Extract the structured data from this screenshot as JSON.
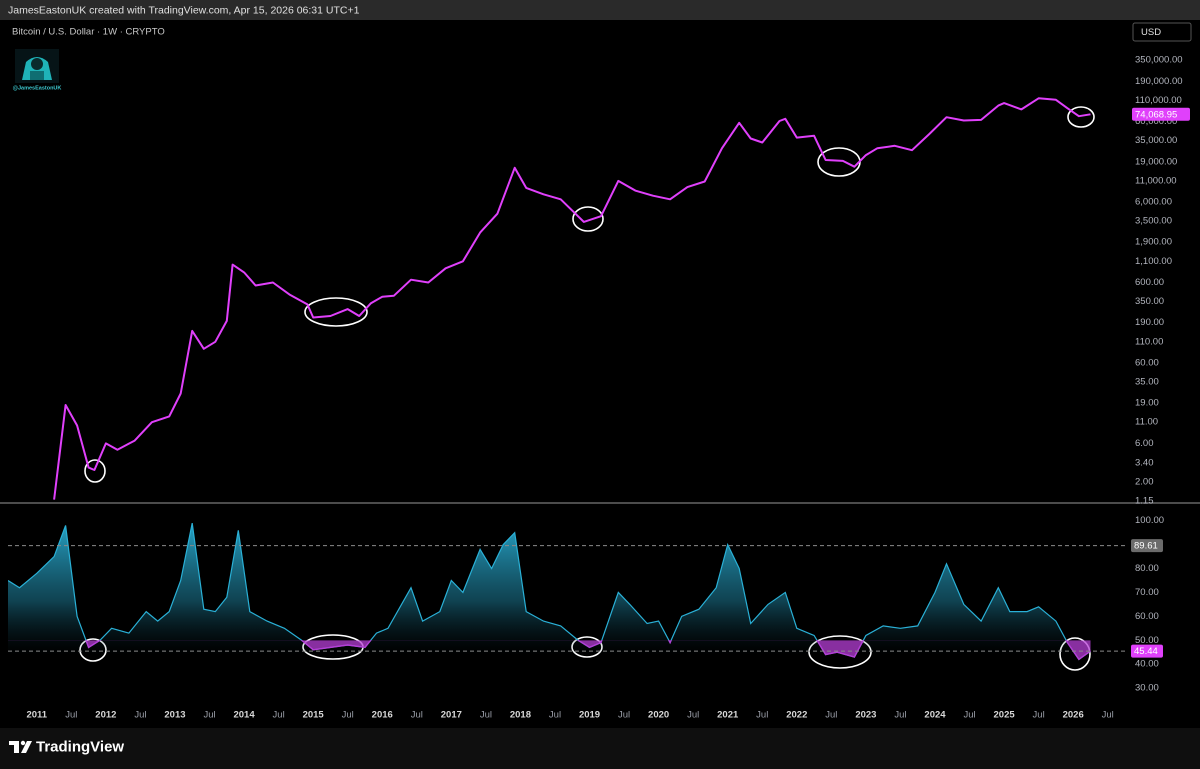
{
  "header": {
    "text": "JamesEastonUK created with TradingView.com, Apr 15, 2026 06:31 UTC+1"
  },
  "watermark_handle": "@JamesEastonUK",
  "footer": {
    "brand": "TradingView"
  },
  "chart_data": [
    {
      "type": "line",
      "title": "Bitcoin / U.S. Dollar · 1W · CRYPTO",
      "currency": "USD",
      "log_scale": true,
      "grid": false,
      "xlim": [
        "2010-08",
        "2026-10"
      ],
      "ylim": [
        1.12,
        1100000
      ],
      "yticks": [
        {
          "value": 350000,
          "label": "350,000.00"
        },
        {
          "value": 190000,
          "label": "190,000.00"
        },
        {
          "value": 110000,
          "label": "110,000.00"
        },
        {
          "value": 60000,
          "label": "60,000.00"
        },
        {
          "value": 35000,
          "label": "35,000.00"
        },
        {
          "value": 19000,
          "label": "19,000.00"
        },
        {
          "value": 11000,
          "label": "11,000.00"
        },
        {
          "value": 6000,
          "label": "6,000.00"
        },
        {
          "value": 3500,
          "label": "3,500.00"
        },
        {
          "value": 1900,
          "label": "1,900.00"
        },
        {
          "value": 1100,
          "label": "1,100.00"
        },
        {
          "value": 600,
          "label": "600.00"
        },
        {
          "value": 350,
          "label": "350.00"
        },
        {
          "value": 190,
          "label": "190.00"
        },
        {
          "value": 110,
          "label": "110.00"
        },
        {
          "value": 60,
          "label": "60.00"
        },
        {
          "value": 35,
          "label": "35.00"
        },
        {
          "value": 19,
          "label": "19.00"
        },
        {
          "value": 11,
          "label": "11.00"
        },
        {
          "value": 6,
          "label": "6.00"
        },
        {
          "value": 3.4,
          "label": "3.40"
        },
        {
          "value": 2,
          "label": "2.00"
        },
        {
          "value": 1.15,
          "label": "1.15"
        }
      ],
      "x": [
        "2011-04",
        "2011-06",
        "2011-08",
        "2011-10",
        "2011-11",
        "2012-01",
        "2012-03",
        "2012-06",
        "2012-09",
        "2012-12",
        "2013-02",
        "2013-04",
        "2013-06",
        "2013-08",
        "2013-10",
        "2013-11",
        "2014-01",
        "2014-03",
        "2014-06",
        "2014-09",
        "2014-12",
        "2015-01",
        "2015-04",
        "2015-07",
        "2015-09",
        "2015-11",
        "2016-01",
        "2016-03",
        "2016-06",
        "2016-09",
        "2016-12",
        "2017-03",
        "2017-06",
        "2017-09",
        "2017-12",
        "2018-02",
        "2018-05",
        "2018-08",
        "2018-11",
        "2018-12",
        "2019-03",
        "2019-06",
        "2019-09",
        "2019-12",
        "2020-03",
        "2020-06",
        "2020-09",
        "2020-12",
        "2021-03",
        "2021-05",
        "2021-07",
        "2021-10",
        "2021-11",
        "2022-01",
        "2022-04",
        "2022-06",
        "2022-09",
        "2022-11",
        "2023-01",
        "2023-03",
        "2023-06",
        "2023-09",
        "2023-12",
        "2024-03",
        "2024-06",
        "2024-09",
        "2024-12",
        "2025-01",
        "2025-04",
        "2025-07",
        "2025-10",
        "2025-12",
        "2026-02",
        "2026-04"
      ],
      "series": [
        {
          "name": "BTCUSD",
          "color": "#e040fb",
          "values": [
            1.2,
            18,
            10,
            3,
            2.8,
            6,
            5,
            6.5,
            11,
            13,
            25,
            150,
            90,
            110,
            200,
            1000,
            800,
            550,
            600,
            420,
            320,
            220,
            230,
            280,
            230,
            330,
            400,
            410,
            650,
            600,
            900,
            1100,
            2500,
            4300,
            16000,
            9000,
            7500,
            6500,
            4000,
            3400,
            4000,
            11000,
            8300,
            7200,
            6500,
            9200,
            10800,
            28000,
            58000,
            37000,
            33000,
            61000,
            65000,
            38000,
            40000,
            20000,
            19500,
            16500,
            23000,
            28000,
            30000,
            26500,
            42000,
            68000,
            62000,
            63000,
            95000,
            102000,
            85000,
            117000,
            112000,
            88000,
            70000,
            74068.95
          ],
          "last_value_label": "74,068.95"
        }
      ]
    },
    {
      "type": "area",
      "grid": false,
      "color": "#2ab0d6",
      "highlight_below": 50,
      "highlight_color": "#b53fd6",
      "xlim": [
        "2010-08",
        "2026-10"
      ],
      "ylim": [
        25,
        107
      ],
      "yticks": [
        {
          "value": 100,
          "label": "100.00"
        },
        {
          "value": 80,
          "label": "80.00"
        },
        {
          "value": 70,
          "label": "70.00"
        },
        {
          "value": 60,
          "label": "60.00"
        },
        {
          "value": 50,
          "label": "50.00"
        },
        {
          "value": 40,
          "label": "40.00"
        },
        {
          "value": 30,
          "label": "30.00"
        }
      ],
      "bands": [
        {
          "value": 89.61,
          "label": "89.61",
          "color": "#6b6b6b"
        },
        {
          "value": 45.44,
          "label": "45.44",
          "color": "#e040fb"
        }
      ],
      "xticks": [
        {
          "value": "2011-01",
          "label": "2011"
        },
        {
          "value": "2011-07",
          "label": "Jul"
        },
        {
          "value": "2012-01",
          "label": "2012"
        },
        {
          "value": "2012-07",
          "label": "Jul"
        },
        {
          "value": "2013-01",
          "label": "2013"
        },
        {
          "value": "2013-07",
          "label": "Jul"
        },
        {
          "value": "2014-01",
          "label": "2014"
        },
        {
          "value": "2014-07",
          "label": "Jul"
        },
        {
          "value": "2015-01",
          "label": "2015"
        },
        {
          "value": "2015-07",
          "label": "Jul"
        },
        {
          "value": "2016-01",
          "label": "2016"
        },
        {
          "value": "2016-07",
          "label": "Jul"
        },
        {
          "value": "2017-01",
          "label": "2017"
        },
        {
          "value": "2017-07",
          "label": "Jul"
        },
        {
          "value": "2018-01",
          "label": "2018"
        },
        {
          "value": "2018-07",
          "label": "Jul"
        },
        {
          "value": "2019-01",
          "label": "2019"
        },
        {
          "value": "2019-07",
          "label": "Jul"
        },
        {
          "value": "2020-01",
          "label": "2020"
        },
        {
          "value": "2020-07",
          "label": "Jul"
        },
        {
          "value": "2021-01",
          "label": "2021"
        },
        {
          "value": "2021-07",
          "label": "Jul"
        },
        {
          "value": "2022-01",
          "label": "2022"
        },
        {
          "value": "2022-07",
          "label": "Jul"
        },
        {
          "value": "2023-01",
          "label": "2023"
        },
        {
          "value": "2023-07",
          "label": "Jul"
        },
        {
          "value": "2024-01",
          "label": "2024"
        },
        {
          "value": "2024-07",
          "label": "Jul"
        },
        {
          "value": "2025-01",
          "label": "2025"
        },
        {
          "value": "2025-07",
          "label": "Jul"
        },
        {
          "value": "2026-01",
          "label": "2026"
        },
        {
          "value": "2026-07",
          "label": "Jul"
        }
      ],
      "x": [
        "2010-08",
        "2010-10",
        "2011-01",
        "2011-04",
        "2011-06",
        "2011-08",
        "2011-10",
        "2011-12",
        "2012-02",
        "2012-05",
        "2012-08",
        "2012-10",
        "2012-12",
        "2013-02",
        "2013-04",
        "2013-06",
        "2013-08",
        "2013-10",
        "2013-12",
        "2014-02",
        "2014-05",
        "2014-08",
        "2014-11",
        "2015-01",
        "2015-04",
        "2015-07",
        "2015-10",
        "2015-12",
        "2016-02",
        "2016-06",
        "2016-08",
        "2016-11",
        "2017-01",
        "2017-03",
        "2017-06",
        "2017-08",
        "2017-10",
        "2017-12",
        "2018-02",
        "2018-05",
        "2018-08",
        "2018-11",
        "2019-01",
        "2019-03",
        "2019-06",
        "2019-08",
        "2019-11",
        "2020-01",
        "2020-03",
        "2020-05",
        "2020-08",
        "2020-11",
        "2021-01",
        "2021-03",
        "2021-05",
        "2021-08",
        "2021-11",
        "2022-01",
        "2022-04",
        "2022-06",
        "2022-08",
        "2022-11",
        "2023-01",
        "2023-04",
        "2023-07",
        "2023-10",
        "2024-01",
        "2024-03",
        "2024-06",
        "2024-09",
        "2024-12",
        "2025-02",
        "2025-05",
        "2025-07",
        "2025-10",
        "2025-12",
        "2026-02",
        "2026-04"
      ],
      "values": [
        75,
        72,
        78,
        85,
        98,
        60,
        47,
        50,
        55,
        53,
        62,
        58,
        62,
        75,
        99,
        63,
        62,
        68,
        96,
        62,
        58,
        55,
        50,
        46,
        47,
        48,
        47,
        53,
        55,
        72,
        58,
        62,
        75,
        70,
        88,
        80,
        90,
        95,
        62,
        58,
        56,
        50,
        47,
        49,
        70,
        65,
        57,
        58,
        49,
        60,
        63,
        72,
        90,
        80,
        57,
        65,
        70,
        55,
        52,
        44,
        45,
        43,
        52,
        56,
        55,
        56,
        70,
        82,
        65,
        58,
        72,
        62,
        62,
        64,
        58,
        49,
        42,
        45.44
      ]
    }
  ]
}
